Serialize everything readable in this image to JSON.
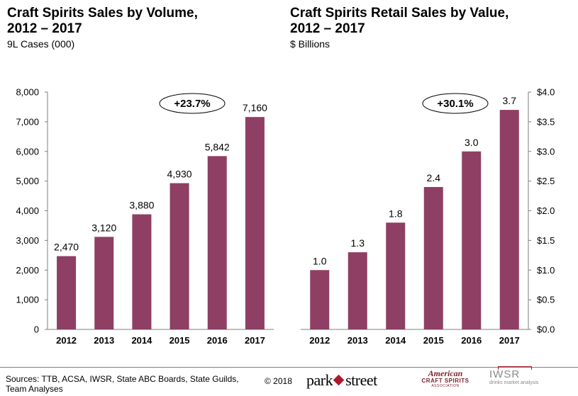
{
  "charts": [
    {
      "title_line1": "Craft Spirits Sales by Volume,",
      "title_line2": "2012 – 2017",
      "subtitle": "9L Cases (000)",
      "growth_label": "+23.7%"
    },
    {
      "title_line1": "Craft Spirits Retail Sales by Value,",
      "title_line2": "2012 – 2017",
      "subtitle": "$ Billions",
      "growth_label": "+30.1%"
    }
  ],
  "chart_data": [
    {
      "type": "bar",
      "title": "Craft Spirits Sales by Volume, 2012 – 2017",
      "subtitle": "9L Cases (000)",
      "categories": [
        "2012",
        "2013",
        "2014",
        "2015",
        "2016",
        "2017"
      ],
      "values": [
        2470,
        3120,
        3880,
        4930,
        5842,
        7160
      ],
      "data_labels": [
        "2,470",
        "3,120",
        "3,880",
        "4,930",
        "5,842",
        "7,160"
      ],
      "ylim": [
        0,
        8000
      ],
      "yticks": [
        0,
        1000,
        2000,
        3000,
        4000,
        5000,
        6000,
        7000,
        8000
      ],
      "ytick_labels": [
        "0",
        "1,000",
        "2,000",
        "3,000",
        "4,000",
        "5,000",
        "6,000",
        "7,000",
        "8,000"
      ],
      "yaxis_side": "left",
      "annotation": "+23.7%",
      "bar_color": "#8e3f63",
      "grid": false
    },
    {
      "type": "bar",
      "title": "Craft Spirits Retail Sales by Value, 2012 – 2017",
      "subtitle": "$ Billions",
      "categories": [
        "2012",
        "2013",
        "2014",
        "2015",
        "2016",
        "2017"
      ],
      "values": [
        1.0,
        1.3,
        1.8,
        2.4,
        3.0,
        3.7
      ],
      "data_labels": [
        "1.0",
        "1.3",
        "1.8",
        "2.4",
        "3.0",
        "3.7"
      ],
      "ylim": [
        0,
        4.0
      ],
      "yticks": [
        0,
        0.5,
        1.0,
        1.5,
        2.0,
        2.5,
        3.0,
        3.5,
        4.0
      ],
      "ytick_labels": [
        "$0.0",
        "$0.5",
        "$1.0",
        "$1.5",
        "$2.0",
        "$2.5",
        "$3.0",
        "$3.5",
        "$4.0"
      ],
      "yaxis_side": "right",
      "annotation": "+30.1%",
      "bar_color": "#8e3f63",
      "grid": false
    }
  ],
  "footer": {
    "sources": "Sources: TTB, ACSA, IWSR, State ABC Boards, State Guilds, Team Analyses",
    "copyright": "© 2018",
    "logo_park_left": "park",
    "logo_park_right": "street",
    "logo_acsa_line1": "American",
    "logo_acsa_line2": "CRAFT SPIRITS",
    "logo_acsa_line3": "ASSOCIATION",
    "logo_iwsr_line1": "IWSR",
    "logo_iwsr_line2": "drinks market analysis"
  },
  "colors": {
    "bar": "#8e3f63",
    "axis": "#7f7f7f",
    "accent_red": "#b0172b"
  }
}
